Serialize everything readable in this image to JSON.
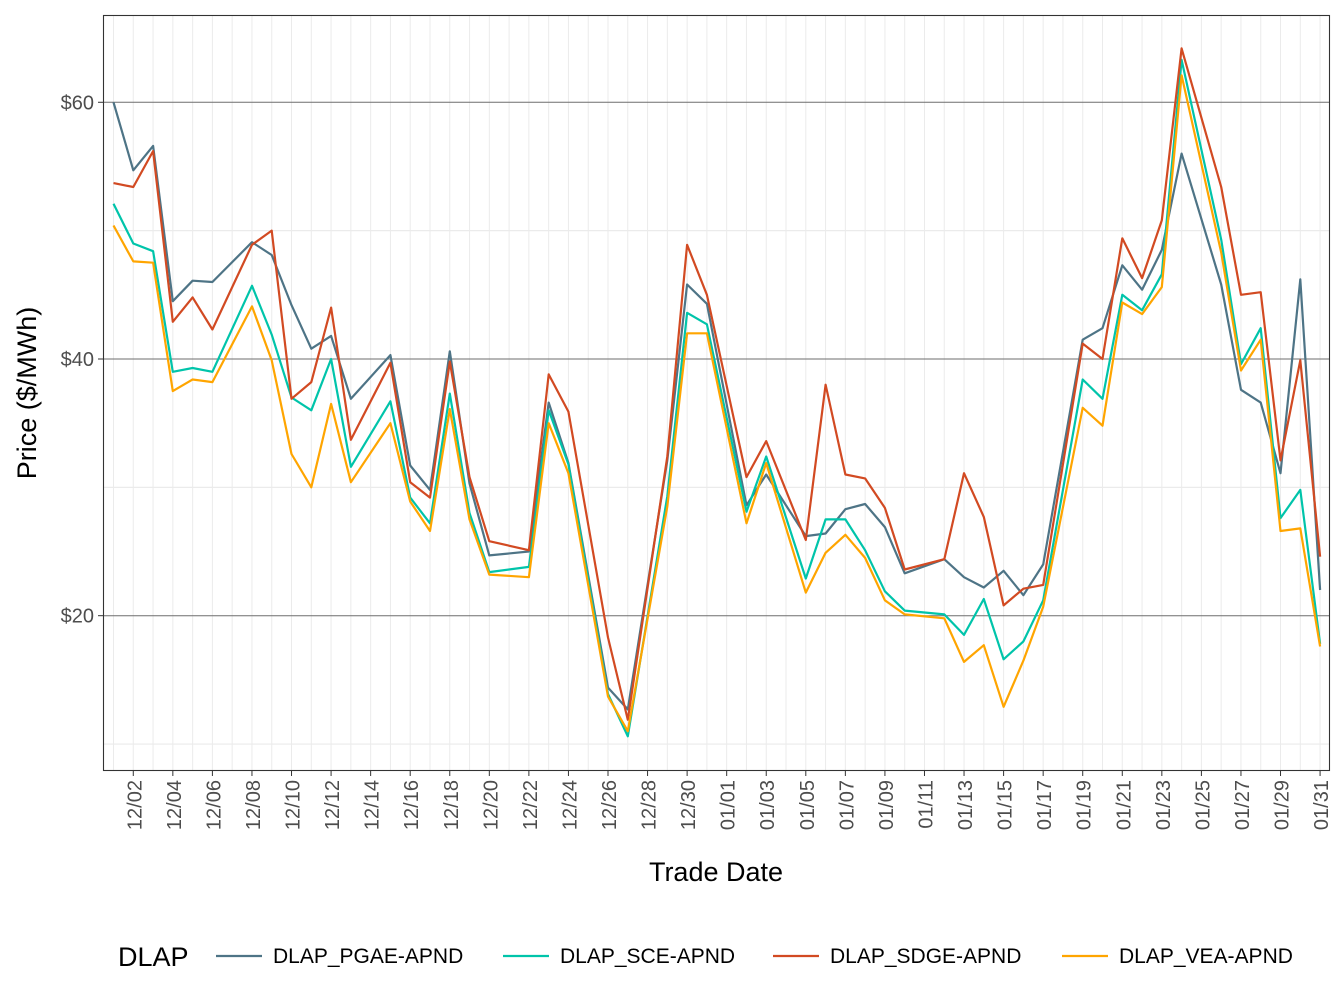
{
  "chart_data": {
    "type": "line",
    "title": "",
    "xlabel": "Trade Date",
    "ylabel": "Price ($/MWh)",
    "ylim": [
      7.9,
      66.8
    ],
    "y_ticks": [
      20,
      40,
      60
    ],
    "y_tick_labels": [
      "$20",
      "$40",
      "$60"
    ],
    "x_tick_labels": [
      "12/02",
      "12/04",
      "12/06",
      "12/08",
      "12/10",
      "12/12",
      "12/14",
      "12/16",
      "12/18",
      "12/20",
      "12/22",
      "12/24",
      "12/26",
      "12/28",
      "12/30",
      "01/01",
      "01/03",
      "01/05",
      "01/07",
      "01/09",
      "01/11",
      "01/13",
      "01/15",
      "01/17",
      "01/19",
      "01/21",
      "01/23",
      "01/25",
      "01/27",
      "01/29",
      "01/31"
    ],
    "grid": true,
    "legend": {
      "title": "DLAP",
      "placement": "bottom"
    },
    "x": [
      "12/01",
      "12/02",
      "12/03",
      "12/04",
      "12/05",
      "12/06",
      "12/08",
      "12/09",
      "12/10",
      "12/11",
      "12/12",
      "12/13",
      "12/15",
      "12/16",
      "12/17",
      "12/18",
      "12/19",
      "12/20",
      "12/22",
      "12/23",
      "12/24",
      "12/26",
      "12/27",
      "12/29",
      "12/30",
      "12/31",
      "01/02",
      "01/03",
      "01/05",
      "01/06",
      "01/07",
      "01/08",
      "01/09",
      "01/10",
      "01/12",
      "01/13",
      "01/14",
      "01/15",
      "01/16",
      "01/17",
      "01/19",
      "01/20",
      "01/21",
      "01/22",
      "01/23",
      "01/24",
      "01/26",
      "01/27",
      "01/28",
      "01/29",
      "01/30",
      "01/31"
    ],
    "series": [
      {
        "name": "DLAP_PGAE-APND",
        "color": "#4E7486",
        "values": [
          60.0,
          54.7,
          56.6,
          44.5,
          46.1,
          46.0,
          49.1,
          48.1,
          44.2,
          40.8,
          41.8,
          36.9,
          40.3,
          31.7,
          29.8,
          40.6,
          30.3,
          24.7,
          25.0,
          36.6,
          31.9,
          14.4,
          12.7,
          32.1,
          45.8,
          44.3,
          28.6,
          31.0,
          26.2,
          26.4,
          28.3,
          28.7,
          26.9,
          23.3,
          24.4,
          23.0,
          22.2,
          23.5,
          21.6,
          24.0,
          41.5,
          42.4,
          47.3,
          45.4,
          48.5,
          56.0,
          45.8,
          37.6,
          36.6,
          31.1,
          46.2,
          22.0
        ]
      },
      {
        "name": "DLAP_SCE-APND",
        "color": "#00C4AA",
        "values": [
          52.1,
          49.0,
          48.4,
          39.0,
          39.3,
          39.0,
          45.7,
          41.9,
          37.0,
          36.0,
          40.0,
          31.6,
          36.7,
          29.2,
          27.2,
          37.3,
          28.0,
          23.4,
          23.8,
          36.0,
          31.8,
          13.9,
          10.6,
          29.3,
          43.6,
          42.7,
          28.1,
          32.4,
          22.9,
          27.5,
          27.5,
          25.1,
          21.9,
          20.4,
          20.1,
          18.5,
          21.3,
          16.6,
          18.0,
          21.2,
          38.4,
          36.9,
          45.0,
          43.8,
          46.6,
          63.3,
          49.3,
          39.6,
          42.4,
          27.6,
          29.8,
          17.8
        ]
      },
      {
        "name": "DLAP_SDGE-APND",
        "color": "#D24A22",
        "values": [
          53.7,
          53.4,
          56.2,
          42.9,
          44.8,
          42.3,
          48.9,
          50.0,
          36.9,
          38.2,
          44.0,
          33.7,
          39.7,
          30.4,
          29.2,
          39.8,
          30.8,
          25.8,
          25.1,
          38.8,
          35.9,
          18.3,
          11.9,
          32.4,
          48.9,
          45.0,
          30.8,
          33.6,
          25.9,
          38.0,
          31.0,
          30.7,
          28.4,
          23.6,
          24.4,
          31.1,
          27.7,
          20.8,
          22.1,
          22.4,
          41.2,
          40.0,
          49.4,
          46.3,
          50.8,
          64.2,
          53.4,
          45.0,
          45.2,
          32.1,
          39.9,
          24.6
        ]
      },
      {
        "name": "DLAP_VEA-APND",
        "color": "#FFA500",
        "values": [
          50.4,
          47.6,
          47.5,
          37.5,
          38.4,
          38.2,
          44.1,
          39.9,
          32.6,
          30.0,
          36.5,
          30.4,
          35.0,
          28.9,
          26.6,
          36.1,
          27.5,
          23.2,
          23.0,
          35.0,
          31.1,
          13.7,
          11.0,
          28.5,
          42.0,
          42.0,
          27.2,
          31.9,
          21.8,
          24.9,
          26.3,
          24.5,
          21.2,
          20.1,
          19.8,
          16.4,
          17.7,
          12.9,
          16.5,
          20.7,
          36.2,
          34.8,
          44.4,
          43.5,
          45.6,
          62.1,
          48.3,
          39.1,
          41.5,
          26.6,
          26.8,
          17.6
        ]
      }
    ]
  }
}
